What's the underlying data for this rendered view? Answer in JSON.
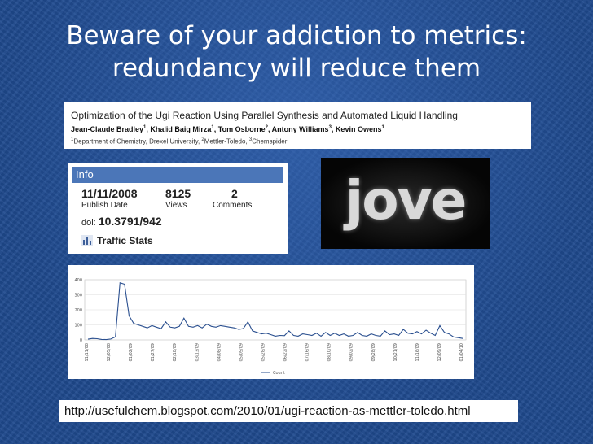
{
  "slide": {
    "title_line1": "Beware of your addiction to metrics:",
    "title_line2": "redundancy will reduce them"
  },
  "paper": {
    "title": "Optimization of the Ugi Reaction Using Parallel Synthesis and Automated Liquid Handling",
    "authors": [
      {
        "name": "Jean-Claude Bradley",
        "sup": "1"
      },
      {
        "name": "Khalid Baig Mirza",
        "sup": "1"
      },
      {
        "name": "Tom Osborne",
        "sup": "2"
      },
      {
        "name": "Antony Williams",
        "sup": "3"
      },
      {
        "name": "Kevin Owens",
        "sup": "1"
      }
    ],
    "affiliations": "Department of Chemistry, Drexel University, Mettler-Toledo, Chemspider",
    "aff_parts": [
      {
        "sup": "1",
        "text": "Department of Chemistry, Drexel University, "
      },
      {
        "sup": "2",
        "text": "Mettler-Toledo, "
      },
      {
        "sup": "3",
        "text": "Chemspider"
      }
    ]
  },
  "info": {
    "header": "Info",
    "publish_date": "11/11/2008",
    "publish_date_label": "Publish Date",
    "views": "8125",
    "views_label": "Views",
    "comments": "2",
    "comments_label": "Comments",
    "doi_label": "doi:",
    "doi": "10.3791/942",
    "traffic_label": "Traffic Stats",
    "traffic_icon": "bar-chart-icon"
  },
  "logo": {
    "text": "jove"
  },
  "url": {
    "text": "http://usefulchem.blogspot.com/2010/01/ugi-reaction-as-mettler-toledo.html"
  },
  "chart_data": {
    "type": "line",
    "title": "",
    "xlabel": "",
    "ylabel": "",
    "ylim": [
      0,
      400
    ],
    "yticks": [
      0,
      100,
      200,
      300,
      400
    ],
    "legend": "bottom",
    "series": [
      {
        "name": "Count",
        "color": "#2a4f8f",
        "values": [
          5,
          10,
          8,
          3,
          2,
          6,
          20,
          380,
          370,
          160,
          110,
          100,
          90,
          80,
          95,
          85,
          75,
          120,
          85,
          80,
          90,
          145,
          90,
          85,
          95,
          80,
          105,
          90,
          85,
          95,
          90,
          85,
          80,
          70,
          75,
          120,
          60,
          50,
          40,
          45,
          35,
          25,
          30,
          28,
          60,
          30,
          25,
          40,
          35,
          30,
          45,
          25,
          50,
          30,
          45,
          30,
          40,
          25,
          30,
          50,
          30,
          25,
          40,
          30,
          25,
          60,
          35,
          40,
          30,
          70,
          45,
          40,
          55,
          40,
          65,
          45,
          30,
          95,
          50,
          40,
          20,
          15,
          10
        ]
      }
    ],
    "x_tick_labels": [
      "11/11/08",
      "12/05/08",
      "01/02/09",
      "01/27/09",
      "02/18/09",
      "03/13/09",
      "04/08/09",
      "05/05/09",
      "05/28/09",
      "06/22/09",
      "07/16/09",
      "08/10/09",
      "09/02/09",
      "09/28/09",
      "10/21/09",
      "11/16/09",
      "12/09/09",
      "01/04/10"
    ]
  }
}
